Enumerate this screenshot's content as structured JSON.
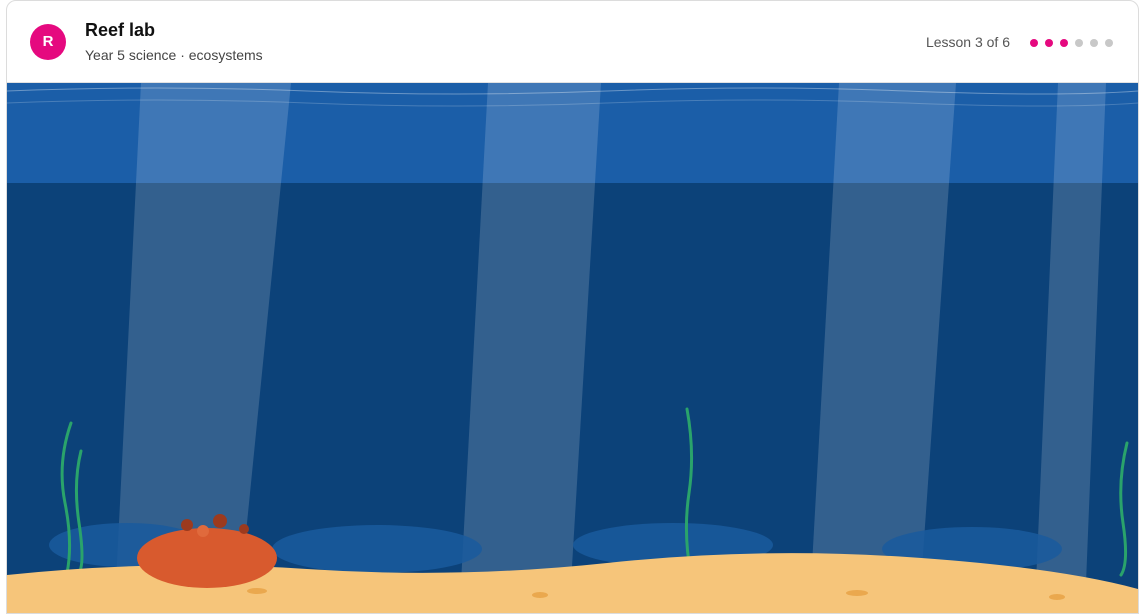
{
  "header": {
    "avatar": "R",
    "title": "Reef lab",
    "subtitle": "Year 5 science · ecosystems"
  },
  "progress": {
    "label": "Lesson 3 of 6",
    "current": 3,
    "total": 6
  }
}
